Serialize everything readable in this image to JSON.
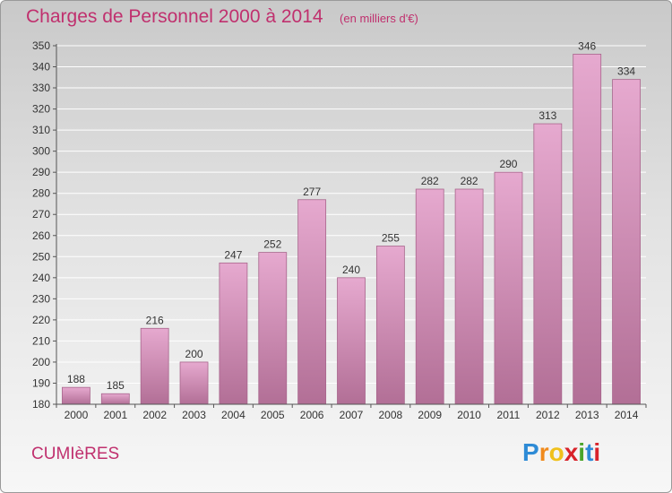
{
  "header": {
    "title": "Charges de Personnel 2000 à 2014",
    "unit": "(en milliers d'€)"
  },
  "footer": {
    "commune": "CUMIèRES",
    "logo_letters": [
      "P",
      "r",
      "o",
      "x",
      "i",
      "t",
      "i"
    ],
    "logo_colors": [
      "#2e8bd6",
      "#f08a1c",
      "#f0c11c",
      "#d8232a",
      "#4aa52a",
      "#2e8bd6",
      "#d8232a"
    ]
  },
  "colors": {
    "bar_top": "#e6a9cf",
    "bar_bottom": "#b26f96",
    "bar_edge": "#a8658c",
    "text": "#333333",
    "grid": "#ffffff",
    "title": "#c0306e"
  },
  "chart_data": {
    "type": "bar",
    "title": "Charges de Personnel 2000 à 2014",
    "subtitle": "(en milliers d'€)",
    "categories": [
      "2000",
      "2001",
      "2002",
      "2003",
      "2004",
      "2005",
      "2006",
      "2007",
      "2008",
      "2009",
      "2010",
      "2011",
      "2012",
      "2013",
      "2014"
    ],
    "values": [
      188,
      185,
      216,
      200,
      247,
      252,
      277,
      240,
      255,
      282,
      282,
      290,
      313,
      346,
      334
    ],
    "ylim": [
      180,
      350
    ],
    "yticks": [
      180,
      190,
      200,
      210,
      220,
      230,
      240,
      250,
      260,
      270,
      280,
      290,
      300,
      310,
      320,
      330,
      340,
      350
    ],
    "grid": true,
    "xlabel": "",
    "ylabel": ""
  }
}
